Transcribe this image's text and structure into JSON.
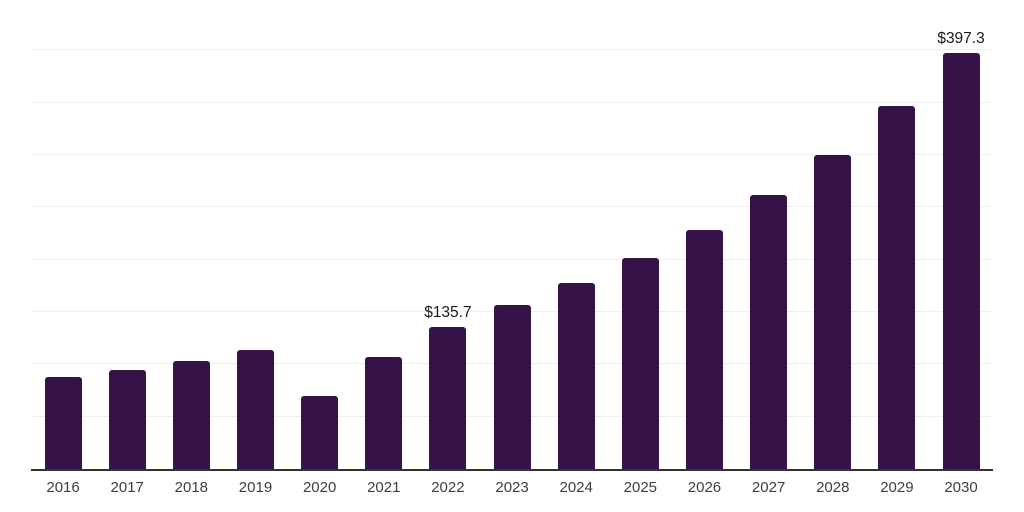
{
  "chart_data": {
    "type": "bar",
    "title": "",
    "xlabel": "",
    "ylabel": "",
    "legend": "none",
    "grid": "horizontal",
    "categories": [
      "2016",
      "2017",
      "2018",
      "2019",
      "2020",
      "2021",
      "2022",
      "2023",
      "2024",
      "2025",
      "2026",
      "2027",
      "2028",
      "2029",
      "2030"
    ],
    "values": [
      88.0,
      94.6,
      103.1,
      113.7,
      69.6,
      107.0,
      135.7,
      156.8,
      177.9,
      201.9,
      228.6,
      262.2,
      299.6,
      346.5,
      397.3
    ],
    "value_labels": {
      "2022": "$135.7",
      "2030": "$397.3"
    },
    "ylim": [
      0,
      450
    ],
    "gridline_step": 50,
    "colors": {
      "bar": "#351349",
      "gridline": "#efefef",
      "axis_line": "#333333",
      "tick_label": "#3f3f3f",
      "value_label": "#1a1a1a",
      "background": "#ffffff"
    }
  }
}
